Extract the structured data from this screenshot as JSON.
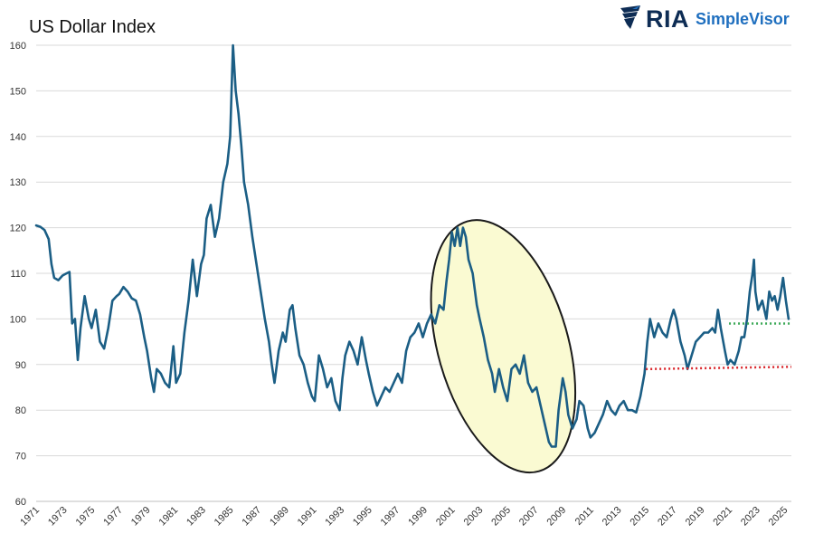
{
  "header": {
    "title": "US Dollar Index",
    "brand_primary": "RIA",
    "brand_secondary": "SimpleVisor",
    "brand_icon": "eagle-icon",
    "brand_color": "#0d2c54",
    "brand_accent": "#1f6fbf"
  },
  "chart_data": {
    "type": "line",
    "title": "US Dollar Index",
    "xlabel": "",
    "ylabel": "",
    "xlim": [
      1971,
      2025.5
    ],
    "ylim": [
      60,
      160
    ],
    "yticks": [
      60,
      70,
      80,
      90,
      100,
      110,
      120,
      130,
      140,
      150,
      160
    ],
    "xticks": [
      "1971",
      "1973",
      "1975",
      "1977",
      "1979",
      "1981",
      "1983",
      "1985",
      "1987",
      "1989",
      "1991",
      "1993",
      "1995",
      "1997",
      "1999",
      "2001",
      "2003",
      "2005",
      "2007",
      "2009",
      "2011",
      "2013",
      "2015",
      "2017",
      "2019",
      "2021",
      "2023",
      "2025"
    ],
    "grid": "horizontal",
    "series": [
      {
        "name": "US Dollar Index",
        "color": "#1b5e85",
        "points": [
          [
            1971.0,
            120.5
          ],
          [
            1971.3,
            120.2
          ],
          [
            1971.6,
            119.5
          ],
          [
            1971.9,
            117.5
          ],
          [
            1972.1,
            112
          ],
          [
            1972.3,
            109
          ],
          [
            1972.6,
            108.5
          ],
          [
            1972.9,
            109.5
          ],
          [
            1973.2,
            110
          ],
          [
            1973.4,
            110.3
          ],
          [
            1973.6,
            99
          ],
          [
            1973.8,
            100
          ],
          [
            1974.0,
            91
          ],
          [
            1974.2,
            98
          ],
          [
            1974.5,
            105
          ],
          [
            1974.8,
            100
          ],
          [
            1975.0,
            98
          ],
          [
            1975.3,
            102
          ],
          [
            1975.6,
            95
          ],
          [
            1975.9,
            93.5
          ],
          [
            1976.2,
            98
          ],
          [
            1976.5,
            104
          ],
          [
            1976.8,
            105
          ],
          [
            1977.0,
            105.5
          ],
          [
            1977.3,
            107
          ],
          [
            1977.6,
            106
          ],
          [
            1977.9,
            104.5
          ],
          [
            1978.2,
            104
          ],
          [
            1978.5,
            101
          ],
          [
            1978.8,
            96
          ],
          [
            1979.0,
            93
          ],
          [
            1979.3,
            87
          ],
          [
            1979.5,
            84
          ],
          [
            1979.7,
            89
          ],
          [
            1980.0,
            88
          ],
          [
            1980.3,
            86
          ],
          [
            1980.6,
            85
          ],
          [
            1980.9,
            94
          ],
          [
            1981.1,
            86
          ],
          [
            1981.4,
            88
          ],
          [
            1981.7,
            97
          ],
          [
            1982.0,
            104
          ],
          [
            1982.3,
            113
          ],
          [
            1982.6,
            105
          ],
          [
            1982.9,
            112
          ],
          [
            1983.1,
            114
          ],
          [
            1983.3,
            122
          ],
          [
            1983.6,
            125
          ],
          [
            1983.9,
            118
          ],
          [
            1984.2,
            122
          ],
          [
            1984.5,
            130
          ],
          [
            1984.8,
            134
          ],
          [
            1985.0,
            140
          ],
          [
            1985.2,
            160
          ],
          [
            1985.4,
            150
          ],
          [
            1985.6,
            145
          ],
          [
            1985.8,
            138
          ],
          [
            1986.0,
            130
          ],
          [
            1986.3,
            125
          ],
          [
            1986.6,
            118
          ],
          [
            1986.9,
            112
          ],
          [
            1987.2,
            106
          ],
          [
            1987.5,
            100
          ],
          [
            1987.8,
            95
          ],
          [
            1988.0,
            90
          ],
          [
            1988.2,
            86
          ],
          [
            1988.5,
            93
          ],
          [
            1988.8,
            97
          ],
          [
            1989.0,
            95
          ],
          [
            1989.3,
            102
          ],
          [
            1989.5,
            103
          ],
          [
            1989.7,
            98
          ],
          [
            1990.0,
            92
          ],
          [
            1990.3,
            90
          ],
          [
            1990.6,
            86
          ],
          [
            1990.9,
            83
          ],
          [
            1991.1,
            82
          ],
          [
            1991.4,
            92
          ],
          [
            1991.7,
            89
          ],
          [
            1992.0,
            85
          ],
          [
            1992.3,
            87
          ],
          [
            1992.6,
            82
          ],
          [
            1992.9,
            80
          ],
          [
            1993.1,
            87
          ],
          [
            1993.3,
            92
          ],
          [
            1993.6,
            95
          ],
          [
            1993.9,
            93
          ],
          [
            1994.2,
            90
          ],
          [
            1994.5,
            96
          ],
          [
            1994.8,
            91
          ],
          [
            1995.0,
            88
          ],
          [
            1995.3,
            84
          ],
          [
            1995.6,
            81
          ],
          [
            1995.9,
            83
          ],
          [
            1996.2,
            85
          ],
          [
            1996.5,
            84
          ],
          [
            1996.8,
            86
          ],
          [
            1997.1,
            88
          ],
          [
            1997.4,
            86
          ],
          [
            1997.7,
            93
          ],
          [
            1998.0,
            96
          ],
          [
            1998.3,
            97
          ],
          [
            1998.6,
            99
          ],
          [
            1998.9,
            96
          ],
          [
            1999.2,
            99
          ],
          [
            1999.5,
            101
          ],
          [
            1999.8,
            99
          ],
          [
            2000.1,
            103
          ],
          [
            2000.4,
            102
          ],
          [
            2000.6,
            108
          ],
          [
            2000.8,
            113
          ],
          [
            2001.0,
            119
          ],
          [
            2001.2,
            116
          ],
          [
            2001.4,
            120
          ],
          [
            2001.6,
            116
          ],
          [
            2001.8,
            120
          ],
          [
            2002.0,
            118
          ],
          [
            2002.2,
            113
          ],
          [
            2002.5,
            110
          ],
          [
            2002.8,
            103
          ],
          [
            2003.0,
            100
          ],
          [
            2003.3,
            96
          ],
          [
            2003.6,
            91
          ],
          [
            2003.9,
            88
          ],
          [
            2004.1,
            84
          ],
          [
            2004.4,
            89
          ],
          [
            2004.7,
            85
          ],
          [
            2005.0,
            82
          ],
          [
            2005.3,
            89
          ],
          [
            2005.6,
            90
          ],
          [
            2005.9,
            88
          ],
          [
            2006.2,
            92
          ],
          [
            2006.5,
            86
          ],
          [
            2006.8,
            84
          ],
          [
            2007.1,
            85
          ],
          [
            2007.4,
            81
          ],
          [
            2007.7,
            77
          ],
          [
            2008.0,
            73
          ],
          [
            2008.2,
            72
          ],
          [
            2008.5,
            72
          ],
          [
            2008.7,
            80
          ],
          [
            2009.0,
            87
          ],
          [
            2009.2,
            84
          ],
          [
            2009.4,
            79
          ],
          [
            2009.7,
            76
          ],
          [
            2010.0,
            78
          ],
          [
            2010.2,
            82
          ],
          [
            2010.5,
            81
          ],
          [
            2010.8,
            76
          ],
          [
            2011.0,
            74
          ],
          [
            2011.3,
            75
          ],
          [
            2011.6,
            77
          ],
          [
            2011.9,
            79
          ],
          [
            2012.2,
            82
          ],
          [
            2012.5,
            80
          ],
          [
            2012.8,
            79
          ],
          [
            2013.1,
            81
          ],
          [
            2013.4,
            82
          ],
          [
            2013.7,
            80
          ],
          [
            2014.0,
            80
          ],
          [
            2014.3,
            79.5
          ],
          [
            2014.6,
            83
          ],
          [
            2014.9,
            88
          ],
          [
            2015.1,
            95
          ],
          [
            2015.3,
            100
          ],
          [
            2015.6,
            96
          ],
          [
            2015.9,
            99
          ],
          [
            2016.2,
            97
          ],
          [
            2016.5,
            96
          ],
          [
            2016.8,
            100
          ],
          [
            2017.0,
            102
          ],
          [
            2017.2,
            100
          ],
          [
            2017.5,
            95
          ],
          [
            2017.8,
            92
          ],
          [
            2018.0,
            89
          ],
          [
            2018.3,
            92
          ],
          [
            2018.6,
            95
          ],
          [
            2018.9,
            96
          ],
          [
            2019.2,
            97
          ],
          [
            2019.5,
            97
          ],
          [
            2019.8,
            98
          ],
          [
            2020.0,
            97
          ],
          [
            2020.2,
            102
          ],
          [
            2020.4,
            98
          ],
          [
            2020.7,
            93
          ],
          [
            2020.9,
            90
          ],
          [
            2021.1,
            91
          ],
          [
            2021.4,
            90
          ],
          [
            2021.7,
            93
          ],
          [
            2021.9,
            96
          ],
          [
            2022.1,
            96
          ],
          [
            2022.3,
            100
          ],
          [
            2022.5,
            106
          ],
          [
            2022.7,
            110
          ],
          [
            2022.8,
            113
          ],
          [
            2022.9,
            106
          ],
          [
            2023.1,
            102
          ],
          [
            2023.4,
            104
          ],
          [
            2023.7,
            100
          ],
          [
            2023.9,
            106
          ],
          [
            2024.1,
            104
          ],
          [
            2024.3,
            105
          ],
          [
            2024.5,
            102
          ],
          [
            2024.7,
            105
          ],
          [
            2024.9,
            109
          ],
          [
            2025.1,
            104
          ],
          [
            2025.3,
            100
          ]
        ]
      }
    ],
    "annotations": [
      {
        "type": "ellipse",
        "label": "highlight-2000-2008",
        "x_range": [
          2000.0,
          2009.4
        ],
        "y_range": [
          65.5,
          122.5
        ],
        "fill": "#fafad2",
        "stroke": "#1a1a1a"
      },
      {
        "type": "hline",
        "label": "green-dotted-level",
        "y": 99,
        "x_range": [
          2021.0,
          2025.5
        ],
        "color": "#3aa856"
      },
      {
        "type": "hline",
        "label": "red-dotted-level",
        "y_range": [
          89,
          89.5
        ],
        "x_range": [
          2015.0,
          2025.5
        ],
        "color": "#d9262b"
      }
    ]
  }
}
